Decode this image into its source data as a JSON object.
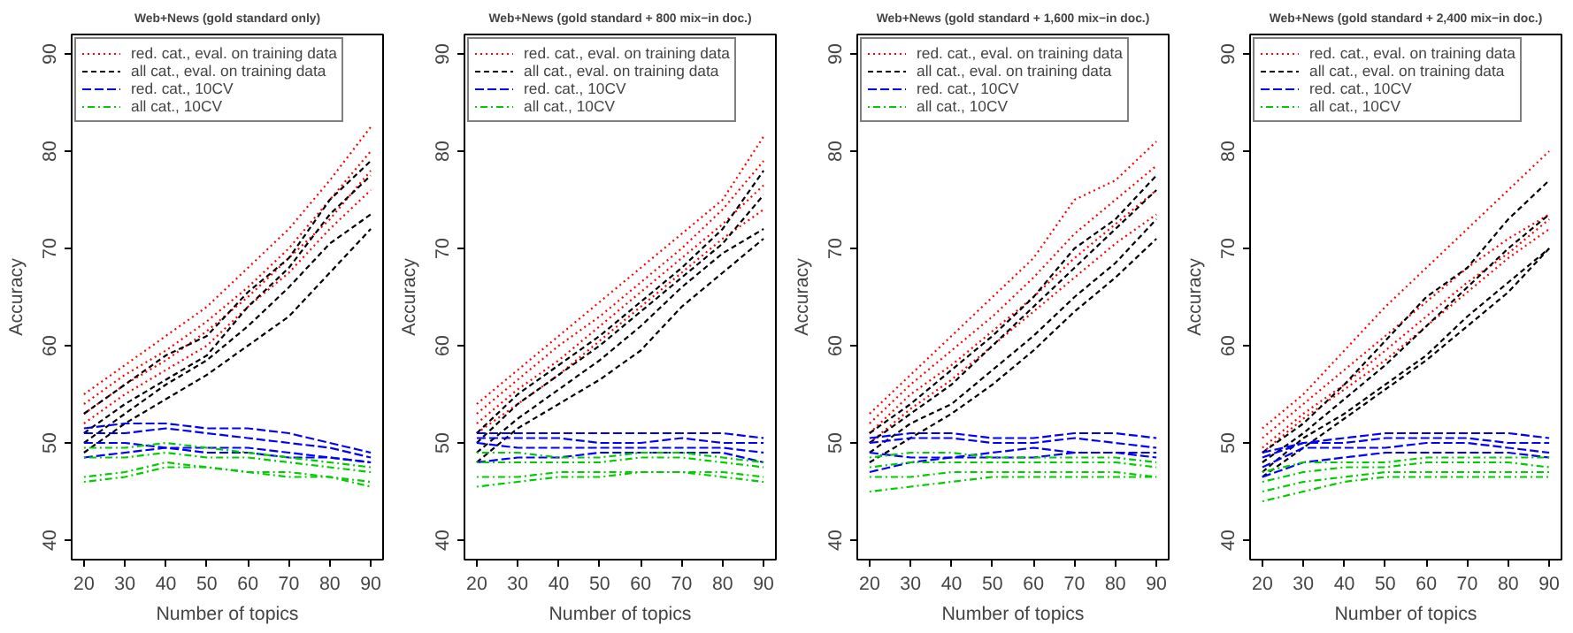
{
  "chart_data": [
    {
      "type": "line",
      "title": "Web+News (gold standard only)",
      "xlabel": "Number of topics",
      "ylabel": "Accuracy",
      "x": [
        20,
        30,
        40,
        50,
        60,
        70,
        80,
        90
      ],
      "xlim": [
        17,
        93
      ],
      "ylim": [
        38,
        92
      ],
      "xticks": [
        20,
        30,
        40,
        50,
        60,
        70,
        80,
        90
      ],
      "yticks": [
        40,
        50,
        60,
        70,
        80,
        90
      ],
      "legend": "top left",
      "series": [
        {
          "name": "red. cat., eval. on training data",
          "color": "#ff0000",
          "line_style": "dotted",
          "values": [
            55,
            58,
            61,
            64,
            68,
            72,
            77,
            82.5
          ]
        },
        {
          "color": "#ff0000",
          "line_style": "dotted",
          "values": [
            54,
            57,
            59.5,
            62.5,
            66,
            70,
            75,
            80
          ]
        },
        {
          "color": "#ff0000",
          "line_style": "dotted",
          "values": [
            53,
            56,
            58.5,
            61.5,
            65,
            69,
            73,
            78
          ]
        },
        {
          "color": "#ff0000",
          "line_style": "dotted",
          "values": [
            52,
            55,
            57.5,
            60,
            64,
            67.5,
            72,
            76
          ]
        },
        {
          "name": "all cat., eval. on training data",
          "color": "#000000",
          "line_style": "dashed",
          "values": [
            53,
            56,
            59,
            61,
            65.5,
            69,
            75,
            79
          ]
        },
        {
          "color": "#000000",
          "line_style": "dashed",
          "values": [
            51,
            54,
            56.5,
            59,
            64,
            68,
            73.5,
            77.5
          ]
        },
        {
          "color": "#000000",
          "line_style": "dashed",
          "values": [
            50,
            53,
            56,
            58.5,
            62,
            66,
            70.5,
            73.5
          ]
        },
        {
          "color": "#000000",
          "line_style": "dashed",
          "values": [
            49,
            52,
            54.5,
            57,
            60,
            63,
            67.5,
            72
          ]
        },
        {
          "name": "red. cat., 10CV",
          "color": "#0000ff",
          "line_style": "longdash",
          "values": [
            51.5,
            52,
            52,
            51.5,
            51.5,
            51,
            50,
            49
          ]
        },
        {
          "color": "#0000ff",
          "line_style": "longdash",
          "values": [
            51,
            51,
            51.5,
            51,
            50.5,
            50,
            49.5,
            48.5
          ]
        },
        {
          "color": "#0000ff",
          "line_style": "longdash",
          "values": [
            50,
            50,
            49.5,
            49.5,
            49.5,
            49,
            48.5,
            48
          ]
        },
        {
          "color": "#0000ff",
          "line_style": "longdash",
          "values": [
            48.5,
            49,
            49.5,
            49,
            49,
            48.5,
            48.5,
            48
          ]
        },
        {
          "name": "all cat., 10CV",
          "color": "#00cd00",
          "line_style": "dashdot",
          "values": [
            49.5,
            49.5,
            50,
            49.5,
            49,
            48.5,
            48,
            47.5
          ]
        },
        {
          "color": "#00cd00",
          "line_style": "dashdot",
          "values": [
            48.5,
            48.5,
            49,
            48.5,
            48.5,
            48,
            47.5,
            47
          ]
        },
        {
          "color": "#00cd00",
          "line_style": "dashdot",
          "values": [
            46.5,
            47,
            48,
            47.5,
            47,
            47,
            46.5,
            46
          ]
        },
        {
          "color": "#00cd00",
          "line_style": "dashdot",
          "values": [
            46,
            46.5,
            47.5,
            47.5,
            47,
            46.5,
            46.5,
            45.5
          ]
        }
      ]
    },
    {
      "type": "line",
      "title": "Web+News (gold standard + 800 mix−in doc.)",
      "xlabel": "Number of topics",
      "ylabel": "Accuracy",
      "x": [
        20,
        30,
        40,
        50,
        60,
        70,
        80,
        90
      ],
      "xlim": [
        17,
        93
      ],
      "ylim": [
        38,
        92
      ],
      "xticks": [
        20,
        30,
        40,
        50,
        60,
        70,
        80,
        90
      ],
      "yticks": [
        40,
        50,
        60,
        70,
        80,
        90
      ],
      "legend": "top left",
      "series": [
        {
          "name": "red. cat., eval. on training data",
          "color": "#ff0000",
          "line_style": "dotted",
          "values": [
            54,
            57.5,
            61,
            64.5,
            68,
            71.5,
            75,
            81.5
          ]
        },
        {
          "color": "#ff0000",
          "line_style": "dotted",
          "values": [
            53,
            56.5,
            60,
            63,
            66.5,
            70,
            74,
            79
          ]
        },
        {
          "color": "#ff0000",
          "line_style": "dotted",
          "values": [
            52,
            55.5,
            58.5,
            62,
            65.5,
            69,
            72.5,
            76.5
          ]
        },
        {
          "color": "#ff0000",
          "line_style": "dotted",
          "values": [
            51,
            54,
            57,
            60.5,
            64,
            67.5,
            71,
            74
          ]
        },
        {
          "name": "all cat., eval. on training data",
          "color": "#000000",
          "line_style": "dashed",
          "values": [
            51,
            55,
            58,
            61,
            64.5,
            68,
            72,
            78
          ]
        },
        {
          "color": "#000000",
          "line_style": "dashed",
          "values": [
            50,
            54,
            57,
            60,
            63.5,
            67,
            70.5,
            75.5
          ]
        },
        {
          "color": "#000000",
          "line_style": "dashed",
          "values": [
            49,
            52.5,
            55.5,
            58.5,
            62,
            66,
            69.5,
            72
          ]
        },
        {
          "color": "#000000",
          "line_style": "dashed",
          "values": [
            48,
            51.5,
            54,
            56.5,
            59.5,
            64,
            67.5,
            71
          ]
        },
        {
          "name": "red. cat., 10CV",
          "color": "#0000ff",
          "line_style": "longdash",
          "values": [
            51,
            51,
            51,
            51,
            51,
            51,
            51,
            50.5
          ]
        },
        {
          "color": "#0000ff",
          "line_style": "longdash",
          "values": [
            50.5,
            50.5,
            50.5,
            50,
            50,
            50.5,
            50,
            50
          ]
        },
        {
          "color": "#0000ff",
          "line_style": "longdash",
          "values": [
            50,
            49.5,
            49.5,
            49.5,
            49.5,
            49.5,
            49.5,
            49
          ]
        },
        {
          "color": "#0000ff",
          "line_style": "longdash",
          "values": [
            48,
            48.5,
            48.5,
            49,
            49,
            49,
            49,
            48
          ]
        },
        {
          "name": "all cat., 10CV",
          "color": "#00cd00",
          "line_style": "dashdot",
          "values": [
            49,
            49,
            48.5,
            48.5,
            49,
            49,
            48.5,
            48
          ]
        },
        {
          "color": "#00cd00",
          "line_style": "dashdot",
          "values": [
            48,
            48,
            48,
            48,
            48.5,
            48.5,
            48,
            47.5
          ]
        },
        {
          "color": "#00cd00",
          "line_style": "dashdot",
          "values": [
            46.5,
            46.5,
            47,
            47,
            47,
            47,
            47,
            46.5
          ]
        },
        {
          "color": "#00cd00",
          "line_style": "dashdot",
          "values": [
            45.5,
            46,
            46.5,
            46.5,
            47,
            47,
            46.5,
            46
          ]
        }
      ]
    },
    {
      "type": "line",
      "title": "Web+News (gold standard + 1,600 mix−in doc.)",
      "xlabel": "Number of topics",
      "ylabel": "Accuracy",
      "x": [
        20,
        30,
        40,
        50,
        60,
        70,
        80,
        90
      ],
      "xlim": [
        17,
        93
      ],
      "ylim": [
        38,
        92
      ],
      "xticks": [
        20,
        30,
        40,
        50,
        60,
        70,
        80,
        90
      ],
      "yticks": [
        40,
        50,
        60,
        70,
        80,
        90
      ],
      "legend": "top left",
      "series": [
        {
          "name": "red. cat., eval. on training data",
          "color": "#ff0000",
          "line_style": "dotted",
          "values": [
            53,
            57,
            61,
            65,
            69,
            75,
            77,
            81
          ]
        },
        {
          "color": "#ff0000",
          "line_style": "dotted",
          "values": [
            52,
            56,
            59.5,
            63,
            67,
            71.5,
            75,
            78.5
          ]
        },
        {
          "color": "#ff0000",
          "line_style": "dotted",
          "values": [
            51,
            55,
            58,
            61.5,
            65,
            69,
            72.5,
            76
          ]
        },
        {
          "color": "#ff0000",
          "line_style": "dotted",
          "values": [
            50,
            53.5,
            56.5,
            60,
            63.5,
            67,
            70.5,
            73.5
          ]
        },
        {
          "name": "all cat., eval. on training data",
          "color": "#000000",
          "line_style": "dashed",
          "values": [
            51,
            54,
            57.5,
            61,
            65,
            70,
            73,
            77.5
          ]
        },
        {
          "color": "#000000",
          "line_style": "dashed",
          "values": [
            50,
            53,
            56,
            60,
            64,
            68,
            72,
            76
          ]
        },
        {
          "color": "#000000",
          "line_style": "dashed",
          "values": [
            49,
            52,
            54,
            57.5,
            61,
            65,
            68.5,
            73
          ]
        },
        {
          "color": "#000000",
          "line_style": "dashed",
          "values": [
            48,
            50.5,
            53,
            56,
            59.5,
            63.5,
            67,
            71
          ]
        },
        {
          "name": "red. cat., 10CV",
          "color": "#0000ff",
          "line_style": "longdash",
          "values": [
            50.5,
            51,
            51,
            50.5,
            50.5,
            51,
            51,
            50.5
          ]
        },
        {
          "color": "#0000ff",
          "line_style": "longdash",
          "values": [
            50,
            50.5,
            50.5,
            50,
            50,
            50.5,
            50,
            49.5
          ]
        },
        {
          "color": "#0000ff",
          "line_style": "longdash",
          "values": [
            49,
            48.5,
            48.5,
            49,
            49.5,
            49,
            49,
            49
          ]
        },
        {
          "color": "#0000ff",
          "line_style": "longdash",
          "values": [
            47,
            48,
            48.5,
            48.5,
            48.5,
            49,
            49,
            48.5
          ]
        },
        {
          "name": "all cat., 10CV",
          "color": "#00cd00",
          "line_style": "dashdot",
          "values": [
            48.5,
            49,
            49,
            48.5,
            48.5,
            48.5,
            48.5,
            48
          ]
        },
        {
          "color": "#00cd00",
          "line_style": "dashdot",
          "values": [
            47.5,
            48,
            48,
            48,
            48,
            48,
            48,
            47.5
          ]
        },
        {
          "color": "#00cd00",
          "line_style": "dashdot",
          "values": [
            46.5,
            46.5,
            47,
            47,
            47,
            47,
            47,
            46.5
          ]
        },
        {
          "color": "#00cd00",
          "line_style": "dashdot",
          "values": [
            45,
            45.5,
            46,
            46.5,
            46.5,
            46.5,
            46.5,
            46.5
          ]
        }
      ]
    },
    {
      "type": "line",
      "title": "Web+News (gold standard + 2,400 mix−in doc.)",
      "xlabel": "Number of topics",
      "ylabel": "Accuracy",
      "x": [
        20,
        30,
        40,
        50,
        60,
        70,
        80,
        90
      ],
      "xlim": [
        17,
        93
      ],
      "ylim": [
        38,
        92
      ],
      "xticks": [
        20,
        30,
        40,
        50,
        60,
        70,
        80,
        90
      ],
      "yticks": [
        40,
        50,
        60,
        70,
        80,
        90
      ],
      "legend": "top left",
      "series": [
        {
          "name": "red. cat., eval. on training data",
          "color": "#ff0000",
          "line_style": "dotted",
          "values": [
            51.5,
            55,
            59.5,
            64,
            68,
            72,
            76,
            80
          ]
        },
        {
          "color": "#ff0000",
          "line_style": "dotted",
          "values": [
            50.5,
            54,
            57.5,
            61,
            64.5,
            68,
            71,
            73.5
          ]
        },
        {
          "color": "#ff0000",
          "line_style": "dotted",
          "values": [
            49.5,
            53,
            56,
            59.5,
            63,
            66.5,
            69.5,
            73
          ]
        },
        {
          "color": "#ff0000",
          "line_style": "dotted",
          "values": [
            49,
            52.5,
            55.5,
            58.5,
            62,
            65.5,
            69,
            72
          ]
        },
        {
          "name": "all cat., eval. on training data",
          "color": "#000000",
          "line_style": "dashed",
          "values": [
            49,
            52,
            56,
            60.5,
            65,
            68,
            73,
            77
          ]
        },
        {
          "color": "#000000",
          "line_style": "dashed",
          "values": [
            48,
            51,
            54.5,
            58,
            62,
            66,
            70,
            73.5
          ]
        },
        {
          "color": "#000000",
          "line_style": "dashed",
          "values": [
            47,
            50.5,
            53,
            56,
            59,
            63,
            66.5,
            70
          ]
        },
        {
          "color": "#000000",
          "line_style": "dashed",
          "values": [
            46.5,
            49.5,
            52.5,
            55.5,
            58.5,
            62,
            65.5,
            70
          ]
        },
        {
          "name": "red. cat., 10CV",
          "color": "#0000ff",
          "line_style": "longdash",
          "values": [
            49,
            50,
            50.5,
            51,
            51,
            51,
            51,
            50.5
          ]
        },
        {
          "color": "#0000ff",
          "line_style": "longdash",
          "values": [
            48.5,
            50,
            50,
            50.5,
            50.5,
            50.5,
            50,
            50
          ]
        },
        {
          "color": "#0000ff",
          "line_style": "longdash",
          "values": [
            47.5,
            49.5,
            49.5,
            49.5,
            50,
            50,
            49.5,
            49
          ]
        },
        {
          "color": "#0000ff",
          "line_style": "longdash",
          "values": [
            46.5,
            48,
            48.5,
            49,
            49,
            49,
            49,
            48.5
          ]
        },
        {
          "name": "all cat., 10CV",
          "color": "#00cd00",
          "line_style": "dashdot",
          "values": [
            47,
            48,
            48,
            48,
            48.5,
            48.5,
            48.5,
            48.5
          ]
        },
        {
          "color": "#00cd00",
          "line_style": "dashdot",
          "values": [
            46,
            47,
            47.5,
            47.5,
            48,
            48,
            48,
            47.5
          ]
        },
        {
          "color": "#00cd00",
          "line_style": "dashdot",
          "values": [
            45,
            46,
            46.5,
            47,
            47,
            47,
            47,
            47
          ]
        },
        {
          "color": "#00cd00",
          "line_style": "dashdot",
          "values": [
            44,
            45,
            46,
            46.5,
            46.5,
            46.5,
            46.5,
            46.5
          ]
        }
      ]
    }
  ]
}
